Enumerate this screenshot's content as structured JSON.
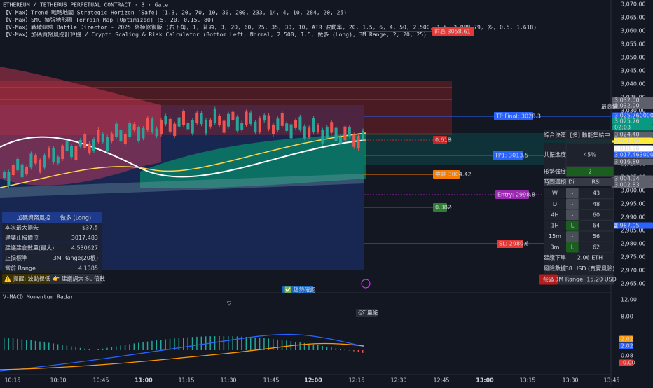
{
  "header": {
    "title": "ETHEREUM / TETHERUS PERPETUAL CONTRACT · 3 · Gate",
    "indicators": [
      "【V-Max】Trend 戰略地圖 Strategic Horizon [Safe] (1.3, 20, 70, 10, 30, 200, 233, 14, 4, 10, 284, 20, 25)",
      "【V-Max】SMC 擴張地形圖 Terrain Map [Optimized] (5, 20, 0.15, 80)",
      "【V-Max】戰域總監 Battle Director - 2025 終極修復版 (右下角, 1, 普通, 3, 20, 60, 25, 35, 30, 10, ATR 波動率, 20, 1.5, 6, 4, 50, 2,500, 1.5, 2,988.79, 多, 0.5, 1.618)",
      "【V-Max】加碼資帑風控計算機 / Crypto Scaling & Risk Calculator (Bottom Left, Normal, 2,500, 1.5, 做多 (Long), 3M Range, 2, 20, 25)"
    ]
  },
  "chart_labels": [
    "前高 3058.61",
    "TP Final: 3028.3",
    "0.618",
    "TP1: 3013.5",
    "中軸 3004.42",
    "Entry: 2998.8",
    "0.382",
    "SL: 2980.6"
  ],
  "price_axis": {
    "ticks": [
      "3,070.00",
      "3,065.00",
      "3,060.00",
      "3,055.00",
      "3,050.00",
      "3,045.00",
      "3,040.00",
      "3,035.00",
      "3,030.00",
      "3,025.00",
      "3,020.00",
      "3,015.00",
      "3,010.00",
      "3,005.00",
      "3,000.00",
      "2,995.00",
      "2,990.00",
      "2,985.00",
      "2,980.00",
      "2,975.00",
      "2,970.00",
      "2,965.00"
    ],
    "markers": [
      "3,032.00",
      "3,032.00",
      "3,025.760000",
      "3,025.76",
      "02:03",
      "3,024.40",
      "3,021.69",
      "3,018.96",
      "3,017.463000",
      "3,016.80",
      "3,004.94",
      "3,002.83",
      "2,987.05"
    ],
    "high_label": "最高價",
    "low_label": "最低價"
  },
  "risk_panel": {
    "header": [
      "加碼資帑風控",
      "做多 (Long)"
    ],
    "rows": [
      [
        "本次最大損失",
        "$37.5"
      ],
      [
        "建議止損價位",
        "3017.483"
      ],
      [
        "建議建倉數量(最大)",
        "4.530627"
      ],
      [
        "止損標準",
        "3M Range(20根)"
      ],
      [
        "當前 Range",
        "4.1385"
      ]
    ],
    "warnings": [
      "⚠️ 提醒: 波動極低",
      "👉 建議調大 SL 倍數"
    ]
  },
  "battle_panel": {
    "rows": [
      [
        "綜合決策",
        "[多] 動能集結中"
      ],
      [
        "共振進度",
        "45%"
      ],
      [
        "形勢強度",
        "2"
      ]
    ],
    "table_header": [
      "時間週期",
      "Dir",
      "RSI"
    ],
    "timeframes": [
      [
        "W",
        "-",
        "43"
      ],
      [
        "D",
        "-",
        "48"
      ],
      [
        "4H",
        "-",
        "60"
      ],
      [
        "1H",
        "L",
        "64"
      ],
      [
        "15m",
        "-",
        "56"
      ],
      [
        "3m",
        "L",
        "62"
      ]
    ],
    "footer": [
      [
        "建議下單",
        "2.06 ETH"
      ],
      [
        "風險數據",
        "38 USD (真實風險)"
      ],
      [
        "禁區",
        "3M Range: 15.20 USD"
      ]
    ]
  },
  "macd": {
    "title": "V-MACD Momentum Radar",
    "badges": [
      "✅ 趨勢確認",
      "😴量縮"
    ],
    "marker": "▽",
    "axis": [
      "12.00",
      "8.00",
      "2.02",
      "2.02",
      "0.08",
      "-0.00"
    ]
  },
  "time_axis": [
    "10:15",
    "10:30",
    "10:45",
    "11:00",
    "11:15",
    "11:30",
    "11:45",
    "12:00",
    "12:15",
    "12:30",
    "12:45",
    "13:00",
    "13:15",
    "13:30",
    "13:45"
  ]
}
